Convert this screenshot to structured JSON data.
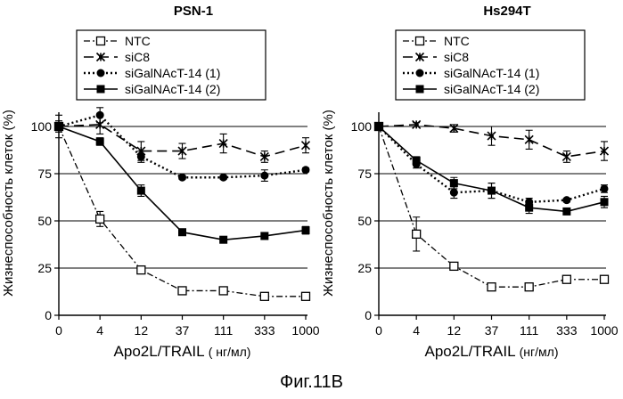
{
  "figure": {
    "caption": "Фиг.11B"
  },
  "chart_data": [
    {
      "type": "line",
      "title": "PSN-1",
      "xlabel_main": "Apo2L/TRAIL",
      "xlabel_unit": "( нг/мл)",
      "ylabel": "Жизнеспособность клеток (%)",
      "categories": [
        "0",
        "4",
        "12",
        "37",
        "111",
        "333",
        "1000"
      ],
      "ylim": [
        0,
        100
      ],
      "yticks": [
        0,
        25,
        50,
        75,
        100
      ],
      "grid": "horizontal",
      "legend": "top",
      "series": [
        {
          "name": "NTC",
          "style": "dash-dot",
          "marker": "open-square",
          "values": [
            100,
            51,
            24,
            13,
            13,
            10,
            10
          ],
          "errors": [
            0,
            4,
            1,
            1,
            1,
            1,
            1
          ]
        },
        {
          "name": "siC8",
          "style": "dashed",
          "marker": "asterisk",
          "values": [
            100,
            101,
            87,
            87,
            91,
            84,
            90
          ],
          "errors": [
            6,
            5,
            5,
            4,
            5,
            3,
            4
          ]
        },
        {
          "name": "siGalNAcT-14 (1)",
          "style": "dotted",
          "marker": "filled-circle",
          "values": [
            100,
            106,
            84,
            73,
            73,
            74,
            77
          ],
          "errors": [
            3,
            4,
            3,
            1,
            1,
            3,
            1
          ]
        },
        {
          "name": "siGalNAcT-14 (2)",
          "style": "solid",
          "marker": "filled-square",
          "values": [
            100,
            92,
            66,
            44,
            40,
            42,
            45
          ],
          "errors": [
            2,
            2,
            3,
            1,
            1,
            1,
            2
          ]
        }
      ]
    },
    {
      "type": "line",
      "title": "Hs294T",
      "xlabel_main": "Apo2L/TRAIL",
      "xlabel_unit": "(нг/мл)",
      "ylabel": "Жизнеспособность клеток (%)",
      "categories": [
        "0",
        "4",
        "12",
        "37",
        "111",
        "333",
        "1000"
      ],
      "ylim": [
        0,
        100
      ],
      "yticks": [
        0,
        25,
        50,
        75,
        100
      ],
      "grid": "horizontal",
      "legend": "top",
      "series": [
        {
          "name": "NTC",
          "style": "dash-dot",
          "marker": "open-square",
          "values": [
            100,
            43,
            26,
            15,
            15,
            19,
            19
          ],
          "errors": [
            0,
            9,
            1,
            1,
            1,
            1,
            1
          ]
        },
        {
          "name": "siC8",
          "style": "dashed",
          "marker": "asterisk",
          "values": [
            100,
            101,
            99,
            95,
            93,
            84,
            87
          ],
          "errors": [
            1,
            1,
            2,
            5,
            5,
            3,
            5
          ]
        },
        {
          "name": "siGalNAcT-14 (1)",
          "style": "dotted",
          "marker": "filled-circle",
          "values": [
            100,
            80,
            65,
            66,
            60,
            61,
            67
          ],
          "errors": [
            1,
            2,
            3,
            4,
            2,
            1,
            2
          ]
        },
        {
          "name": "siGalNAcT-14 (2)",
          "style": "solid",
          "marker": "filled-square",
          "values": [
            100,
            82,
            70,
            66,
            57,
            55,
            60
          ],
          "errors": [
            1,
            2,
            3,
            4,
            3,
            1,
            3
          ]
        }
      ]
    }
  ]
}
